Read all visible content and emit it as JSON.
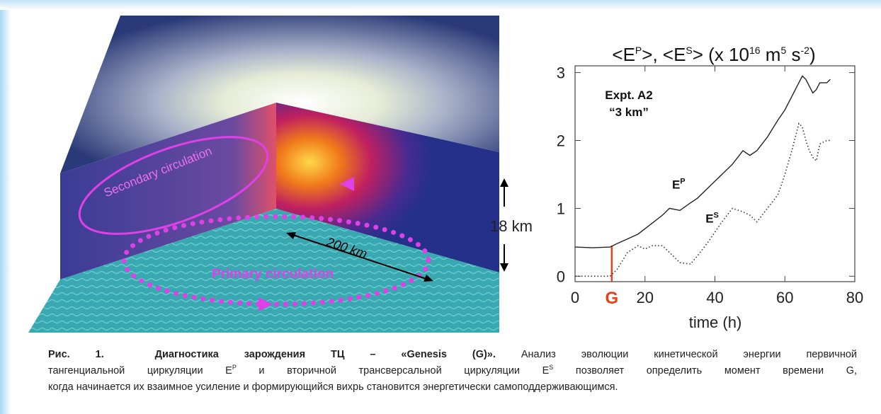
{
  "diagram": {
    "secondary": "Secondary circulation",
    "primary": "Primary circulation",
    "distance": "200 km",
    "height": "18 km"
  },
  "chart_data": {
    "type": "line",
    "title": [
      {
        "text": "<E"
      },
      {
        "text": "P",
        "sup": true
      },
      {
        "text": ">, <E"
      },
      {
        "text": "S",
        "sup": true
      },
      {
        "text": "> (x 10"
      },
      {
        "text": "16",
        "sup": true
      },
      {
        "text": " m"
      },
      {
        "text": "5",
        "sup": true
      },
      {
        "text": " s"
      },
      {
        "text": "-2",
        "sup": true
      },
      {
        "text": ")"
      }
    ],
    "x_label": "time (h)",
    "annotations": [
      "Expt. A2",
      "“3 km”"
    ],
    "x": [
      0,
      5,
      10,
      12,
      15,
      18,
      20,
      22,
      25,
      27,
      30,
      33,
      35,
      38,
      40,
      42,
      45,
      48,
      50,
      52,
      55,
      58,
      60,
      62,
      64,
      65,
      66,
      67,
      68,
      69,
      70,
      72,
      73
    ],
    "series": [
      {
        "name": "E",
        "name_sup": "P",
        "color": "#222222",
        "line_style": "solid",
        "values": [
          0.43,
          0.42,
          0.43,
          0.48,
          0.55,
          0.62,
          0.7,
          0.78,
          0.9,
          1.0,
          0.97,
          1.08,
          1.15,
          1.3,
          1.4,
          1.5,
          1.65,
          1.85,
          1.78,
          1.85,
          2.05,
          2.3,
          2.45,
          2.65,
          2.85,
          2.95,
          2.9,
          2.8,
          2.7,
          2.75,
          2.85,
          2.85,
          2.9
        ]
      },
      {
        "name": "E",
        "name_sup": "S",
        "color": "#333333",
        "line_style": "dotted",
        "values": [
          0.0,
          0.0,
          0.0,
          0.1,
          0.35,
          0.45,
          0.4,
          0.45,
          0.45,
          0.35,
          0.2,
          0.18,
          0.3,
          0.5,
          0.65,
          0.8,
          1.0,
          0.95,
          0.9,
          0.8,
          1.0,
          1.2,
          1.5,
          1.85,
          2.25,
          2.2,
          2.0,
          1.85,
          1.75,
          1.7,
          1.95,
          2.0,
          2.0
        ]
      }
    ],
    "marker": {
      "label": "G",
      "x": 10.5,
      "y_top": 0.45,
      "color": "#e8401c"
    },
    "xlim": [
      0,
      80
    ],
    "ylim": [
      -0.08,
      3.1
    ],
    "xticks": [
      0,
      20,
      40,
      60,
      80
    ],
    "yticks": [
      0,
      1,
      2,
      3
    ]
  },
  "caption": {
    "lines": [
      [
        {
          "text": "Рис. 1.  Диагностика зарождения ТЦ – «Genesis (G)».",
          "bold": true
        },
        {
          "text": " Анализ эволюции кинетической энергии первичной"
        }
      ],
      [
        {
          "text": "тангенциальной циркуляции E"
        },
        {
          "text": "P",
          "sup": true
        },
        {
          "text": " и вторичной трансверсальной циркуляции E"
        },
        {
          "text": "S",
          "sup": true
        },
        {
          "text": " позволяет определить момент времени G,"
        }
      ],
      [
        {
          "text": "когда начинается их взаимное усиление и формирующийся вихрь становится энергетически самоподдерживающимся."
        }
      ]
    ]
  }
}
